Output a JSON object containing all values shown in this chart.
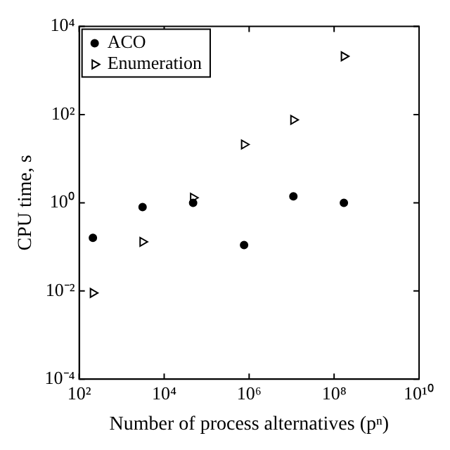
{
  "chart_data": {
    "type": "scatter",
    "xlabel": "Number of process alternatives (pⁿ)",
    "ylabel": "CPU time, s",
    "log": "xy",
    "legend": "top left",
    "grid": false,
    "xlim": [
      100,
      10000000000
    ],
    "xticks": [
      {
        "value": 100,
        "label": "10²"
      },
      {
        "value": 10000,
        "label": "10⁴"
      },
      {
        "value": 1000000,
        "label": "10⁶"
      },
      {
        "value": 100000000,
        "label": "10⁸"
      },
      {
        "value": 10000000000,
        "label": "10¹⁰"
      }
    ],
    "ylim": [
      0.0001,
      10000
    ],
    "yticks": [
      {
        "value": 0.0001,
        "label": "10⁻⁴"
      },
      {
        "value": 0.01,
        "label": "10⁻²"
      },
      {
        "value": 1,
        "label": "10⁰"
      },
      {
        "value": 100,
        "label": "10²"
      },
      {
        "value": 10000,
        "label": "10⁴"
      }
    ],
    "series": [
      {
        "name": "ACO",
        "color": "#000000",
        "marker": "circle",
        "x": [
          210,
          3100,
          48000,
          760000,
          11000000,
          170000000
        ],
        "values": [
          0.16,
          0.8,
          1.0,
          0.11,
          1.4,
          1.0
        ]
      },
      {
        "name": "Enumeration",
        "color": "#000000",
        "marker": "triangle",
        "x": [
          210,
          3100,
          48000,
          760000,
          11000000,
          170000000
        ],
        "values": [
          0.009,
          0.13,
          1.3,
          21,
          76,
          2100
        ]
      }
    ]
  }
}
